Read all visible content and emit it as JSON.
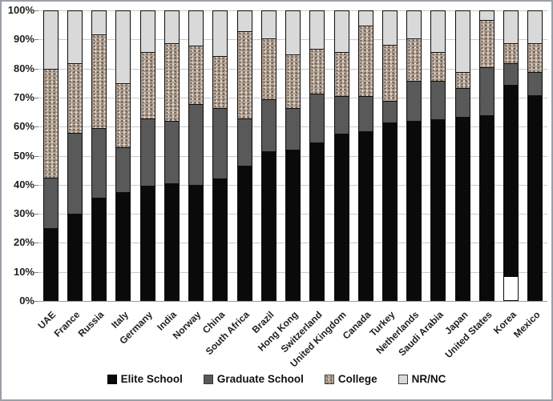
{
  "chart_data": {
    "type": "bar",
    "stacked": true,
    "percent_stacked": true,
    "title": "",
    "xlabel": "",
    "ylabel": "",
    "ylim": [
      0,
      100
    ],
    "grid": true,
    "legend_position": "bottom",
    "y_ticks": [
      "0%",
      "10%",
      "20%",
      "30%",
      "40%",
      "50%",
      "60%",
      "70%",
      "80%",
      "90%",
      "100%"
    ],
    "categories": [
      "UAE",
      "France",
      "Russia",
      "Italy",
      "Germany",
      "India",
      "Norway",
      "China",
      "South Africa",
      "Brazil",
      "Hong Kong",
      "Switzerland",
      "United Kingdom",
      "Canada",
      "Turkey",
      "Netherlands",
      "Saudi Arabia",
      "Japan",
      "United States",
      "Korea",
      "Mexico"
    ],
    "series": [
      {
        "name": "Elite School",
        "color": "#0a0a0a",
        "values": [
          25,
          30,
          35.5,
          37.5,
          39.5,
          40.5,
          40,
          42,
          46.5,
          51.5,
          52,
          54.5,
          57.5,
          58.5,
          61.5,
          62,
          62.5,
          63.5,
          64,
          66.5,
          71
        ]
      },
      {
        "name": "Graduate School",
        "color": "#595959",
        "values": [
          17.5,
          28,
          24,
          15.5,
          23.5,
          21.5,
          28,
          24.5,
          16.5,
          18,
          14.5,
          17,
          13,
          12,
          7.5,
          14,
          13.5,
          10,
          16.5,
          7.5,
          8
        ]
      },
      {
        "name": "College",
        "color": "#b6a698",
        "texture": "speckled",
        "values": [
          37.5,
          24,
          32.5,
          22,
          23,
          27,
          20,
          18,
          30,
          21,
          18.5,
          15.5,
          15.5,
          24.5,
          19.5,
          14.5,
          10,
          5.5,
          16.5,
          7,
          10
        ]
      },
      {
        "name": "NR/NC",
        "color": "#d9d9d9",
        "values": [
          20,
          18,
          8,
          25,
          14,
          11,
          12,
          15.5,
          7,
          9.5,
          15,
          13,
          14,
          5,
          11.5,
          9.5,
          14,
          21,
          3,
          11,
          11
        ]
      }
    ]
  }
}
